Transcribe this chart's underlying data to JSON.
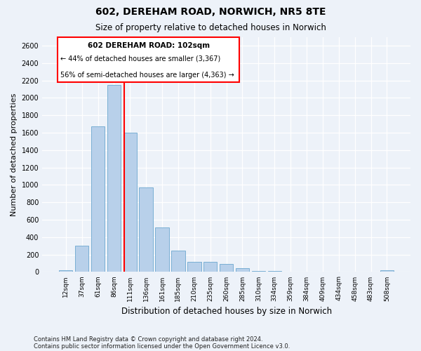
{
  "title1": "602, DEREHAM ROAD, NORWICH, NR5 8TE",
  "title2": "Size of property relative to detached houses in Norwich",
  "xlabel": "Distribution of detached houses by size in Norwich",
  "ylabel": "Number of detached properties",
  "categories": [
    "12sqm",
    "37sqm",
    "61sqm",
    "86sqm",
    "111sqm",
    "136sqm",
    "161sqm",
    "185sqm",
    "210sqm",
    "235sqm",
    "260sqm",
    "285sqm",
    "310sqm",
    "334sqm",
    "359sqm",
    "384sqm",
    "409sqm",
    "434sqm",
    "458sqm",
    "483sqm",
    "508sqm"
  ],
  "values": [
    20,
    300,
    1670,
    2150,
    1600,
    970,
    510,
    245,
    120,
    115,
    90,
    40,
    10,
    8,
    5,
    5,
    5,
    5,
    5,
    5,
    20
  ],
  "bar_color": "#b8d0ea",
  "bar_edge_color": "#7aafd4",
  "annotation_text_line1": "602 DEREHAM ROAD: 102sqm",
  "annotation_text_line2": "← 44% of detached houses are smaller (3,367)",
  "annotation_text_line3": "56% of semi-detached houses are larger (4,363) →",
  "vline_color": "red",
  "box_color": "red",
  "footnote1": "Contains HM Land Registry data © Crown copyright and database right 2024.",
  "footnote2": "Contains public sector information licensed under the Open Government Licence v3.0.",
  "ylim": [
    0,
    2700
  ],
  "yticks": [
    0,
    200,
    400,
    600,
    800,
    1000,
    1200,
    1400,
    1600,
    1800,
    2000,
    2200,
    2400,
    2600
  ],
  "bg_color": "#edf2f9",
  "grid_color": "white"
}
